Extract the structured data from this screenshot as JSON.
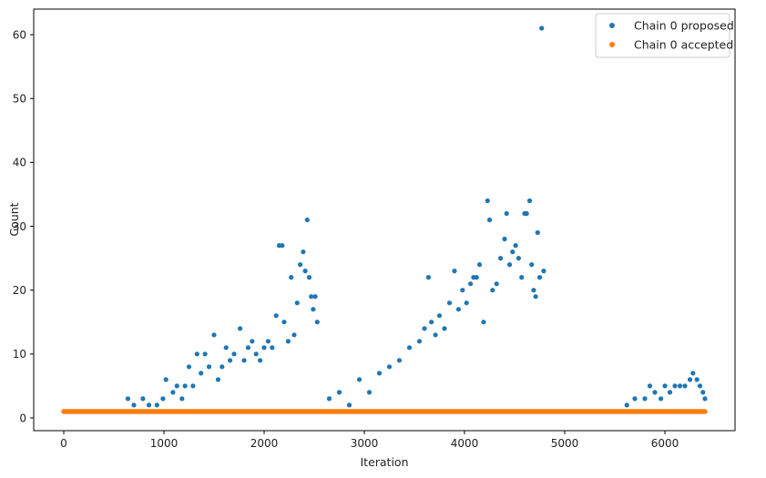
{
  "chart_data": {
    "type": "scatter",
    "title": "",
    "xlabel": "Iteration",
    "ylabel": "Count",
    "xlim": [
      -300,
      6700
    ],
    "ylim": [
      -2,
      64
    ],
    "xticks": [
      0,
      1000,
      2000,
      3000,
      4000,
      5000,
      6000
    ],
    "yticks": [
      0,
      10,
      20,
      30,
      40,
      50,
      60
    ],
    "grid": false,
    "legend_position": "top-right",
    "series": [
      {
        "name": "Chain 0 proposed",
        "color": "#1f77b4",
        "points": [
          [
            640,
            3
          ],
          [
            700,
            2
          ],
          [
            790,
            3
          ],
          [
            850,
            2
          ],
          [
            930,
            2
          ],
          [
            990,
            3
          ],
          [
            1020,
            6
          ],
          [
            1090,
            4
          ],
          [
            1130,
            5
          ],
          [
            1180,
            3
          ],
          [
            1210,
            5
          ],
          [
            1250,
            8
          ],
          [
            1290,
            5
          ],
          [
            1330,
            10
          ],
          [
            1370,
            7
          ],
          [
            1410,
            10
          ],
          [
            1450,
            8
          ],
          [
            1500,
            13
          ],
          [
            1540,
            6
          ],
          [
            1580,
            8
          ],
          [
            1620,
            11
          ],
          [
            1660,
            9
          ],
          [
            1700,
            10
          ],
          [
            1760,
            14
          ],
          [
            1800,
            9
          ],
          [
            1840,
            11
          ],
          [
            1880,
            12
          ],
          [
            1920,
            10
          ],
          [
            1960,
            9
          ],
          [
            2000,
            11
          ],
          [
            2040,
            12
          ],
          [
            2080,
            11
          ],
          [
            2120,
            16
          ],
          [
            2150,
            27
          ],
          [
            2180,
            27
          ],
          [
            2200,
            15
          ],
          [
            2240,
            12
          ],
          [
            2270,
            22
          ],
          [
            2300,
            13
          ],
          [
            2330,
            18
          ],
          [
            2360,
            24
          ],
          [
            2390,
            26
          ],
          [
            2410,
            23
          ],
          [
            2430,
            31
          ],
          [
            2450,
            22
          ],
          [
            2470,
            19
          ],
          [
            2490,
            17
          ],
          [
            2510,
            19
          ],
          [
            2530,
            15
          ],
          [
            2650,
            3
          ],
          [
            2750,
            4
          ],
          [
            2850,
            2
          ],
          [
            2950,
            6
          ],
          [
            3050,
            4
          ],
          [
            3150,
            7
          ],
          [
            3250,
            8
          ],
          [
            3350,
            9
          ],
          [
            3450,
            11
          ],
          [
            3550,
            12
          ],
          [
            3600,
            14
          ],
          [
            3640,
            22
          ],
          [
            3670,
            15
          ],
          [
            3710,
            13
          ],
          [
            3750,
            16
          ],
          [
            3800,
            14
          ],
          [
            3850,
            18
          ],
          [
            3900,
            23
          ],
          [
            3940,
            17
          ],
          [
            3980,
            20
          ],
          [
            4020,
            18
          ],
          [
            4060,
            21
          ],
          [
            4090,
            22
          ],
          [
            4120,
            22
          ],
          [
            4150,
            24
          ],
          [
            4190,
            15
          ],
          [
            4230,
            34
          ],
          [
            4250,
            31
          ],
          [
            4280,
            20
          ],
          [
            4320,
            21
          ],
          [
            4360,
            25
          ],
          [
            4400,
            28
          ],
          [
            4420,
            32
          ],
          [
            4450,
            24
          ],
          [
            4480,
            26
          ],
          [
            4510,
            27
          ],
          [
            4540,
            25
          ],
          [
            4570,
            22
          ],
          [
            4600,
            32
          ],
          [
            4620,
            32
          ],
          [
            4650,
            34
          ],
          [
            4670,
            24
          ],
          [
            4690,
            20
          ],
          [
            4710,
            19
          ],
          [
            4730,
            29
          ],
          [
            4750,
            22
          ],
          [
            4770,
            61
          ],
          [
            4790,
            23
          ],
          [
            5620,
            2
          ],
          [
            5700,
            3
          ],
          [
            5800,
            3
          ],
          [
            5850,
            5
          ],
          [
            5900,
            4
          ],
          [
            5960,
            3
          ],
          [
            6000,
            5
          ],
          [
            6050,
            4
          ],
          [
            6100,
            5
          ],
          [
            6150,
            5
          ],
          [
            6200,
            5
          ],
          [
            6250,
            6
          ],
          [
            6280,
            7
          ],
          [
            6320,
            6
          ],
          [
            6350,
            5
          ],
          [
            6380,
            4
          ],
          [
            6400,
            3
          ]
        ]
      },
      {
        "name": "Chain 0 accepted",
        "color": "#ff7f0e",
        "points": [
          [
            0,
            1
          ],
          [
            6400,
            1
          ]
        ]
      }
    ]
  }
}
